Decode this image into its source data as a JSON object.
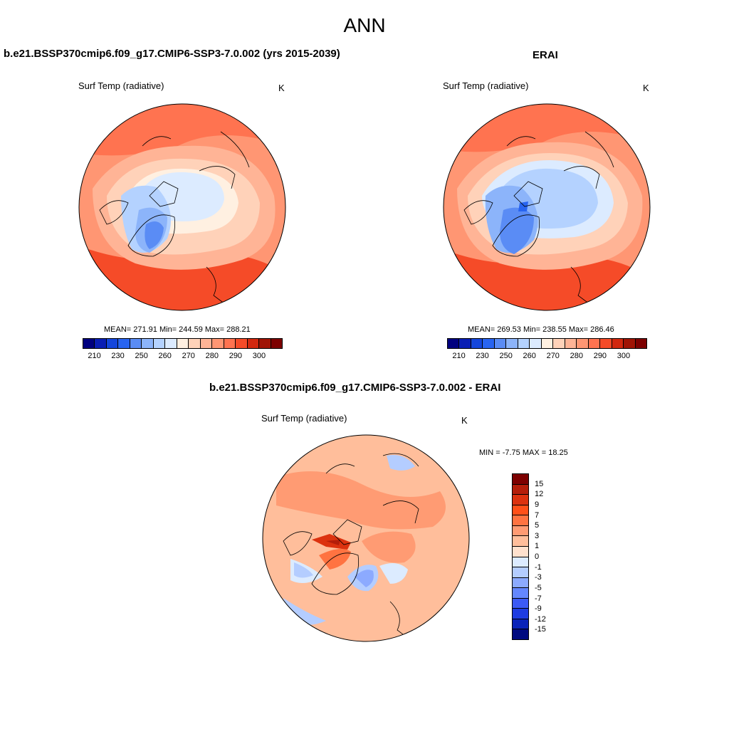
{
  "page": {
    "title": "ANN"
  },
  "panel_left": {
    "title": "b.e21.BSSP370cmip6.f09_g17.CMIP6-SSP3-7.0.002 (yrs 2015-2039)",
    "variable": "Surf Temp (radiative)",
    "units": "K",
    "stats": "MEAN= 271.91  Min= 244.59  Max= 288.21",
    "mean": 271.91,
    "min": 244.59,
    "max": 288.21
  },
  "panel_right": {
    "title": "ERAI",
    "variable": "Surf Temp (radiative)",
    "units": "K",
    "stats": "MEAN= 269.53  Min= 238.55  Max= 286.46",
    "mean": 269.53,
    "min": 238.55,
    "max": 286.46
  },
  "panel_diff": {
    "title": "b.e21.BSSP370cmip6.f09_g17.CMIP6-SSP3-7.0.002 - ERAI",
    "variable": "Surf Temp (radiative)",
    "units": "K",
    "stats": "MIN =  -7.75 MAX =  18.25",
    "min": -7.75,
    "max": 18.25
  },
  "abs_colorbar": {
    "colors": [
      "#00007f",
      "#0a1eb4",
      "#1446dc",
      "#2864f0",
      "#5a8cf5",
      "#8cb4fa",
      "#b4d2ff",
      "#dcebff",
      "#fff0e1",
      "#ffd2b9",
      "#ffb496",
      "#ff9673",
      "#ff7350",
      "#f54b28",
      "#d2280f",
      "#a01405",
      "#7d0000"
    ],
    "tick_labels": [
      "210",
      "230",
      "250",
      "260",
      "270",
      "280",
      "290",
      "300"
    ]
  },
  "diff_colorbar": {
    "colors_top_to_bottom": [
      "#7d0000",
      "#b41e0a",
      "#dc320f",
      "#ff5019",
      "#ff7341",
      "#ff9b73",
      "#ffbe9b",
      "#ffe1cd",
      "#dcebff",
      "#b4cdff",
      "#8caaff",
      "#6487ff",
      "#3c5af5",
      "#1e3ce1",
      "#0a23b9",
      "#000a80"
    ],
    "labels": [
      "15",
      "12",
      "9",
      "7",
      "5",
      "3",
      "1",
      "0",
      "-1",
      "-3",
      "-5",
      "-7",
      "-9",
      "-12",
      "-15"
    ]
  },
  "chart_data": [
    {
      "type": "heatmap",
      "title": "b.e21.BSSP370cmip6.f09_g17.CMIP6-SSP3-7.0.002 (yrs 2015-2039)",
      "variable": "Surf Temp (radiative)",
      "units": "K",
      "projection": "north polar stereographic",
      "mean": 271.91,
      "min": 244.59,
      "max": 288.21,
      "levels": [
        210,
        220,
        230,
        240,
        250,
        255,
        260,
        265,
        270,
        275,
        280,
        285,
        290,
        295,
        300
      ]
    },
    {
      "type": "heatmap",
      "title": "ERAI",
      "variable": "Surf Temp (radiative)",
      "units": "K",
      "projection": "north polar stereographic",
      "mean": 269.53,
      "min": 238.55,
      "max": 286.46,
      "levels": [
        210,
        220,
        230,
        240,
        250,
        255,
        260,
        265,
        270,
        275,
        280,
        285,
        290,
        295,
        300
      ]
    },
    {
      "type": "heatmap",
      "title": "b.e21.BSSP370cmip6.f09_g17.CMIP6-SSP3-7.0.002 - ERAI",
      "variable": "Surf Temp (radiative)",
      "units": "K",
      "projection": "north polar stereographic",
      "min": -7.75,
      "max": 18.25,
      "levels": [
        -15,
        -12,
        -9,
        -7,
        -5,
        -3,
        -1,
        0,
        1,
        3,
        5,
        7,
        9,
        12,
        15
      ]
    }
  ]
}
